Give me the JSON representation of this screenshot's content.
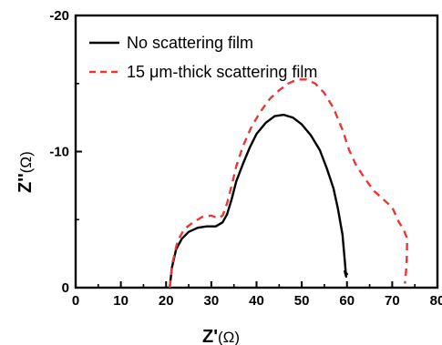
{
  "chart_data": {
    "type": "line",
    "xlabel": "Z'",
    "xlabel_unit": "(Ω)",
    "ylabel": "Z''",
    "ylabel_unit": "(Ω)",
    "xlim": [
      0,
      80
    ],
    "ylim": [
      0,
      -20
    ],
    "x_ticks": [
      "0",
      "10",
      "20",
      "30",
      "40",
      "50",
      "60",
      "70",
      "80"
    ],
    "y_ticks": [
      "0",
      "-10",
      "-20"
    ],
    "y_tick_values": [
      0,
      -10,
      -20
    ],
    "grid": false,
    "legend_position": "top-left",
    "series": [
      {
        "name": "No scattering film",
        "color": "#000000",
        "style": "solid",
        "points": [
          [
            20.8,
            0.0
          ],
          [
            21.3,
            -1.5
          ],
          [
            22.2,
            -2.8
          ],
          [
            23.5,
            -3.6
          ],
          [
            25.0,
            -4.1
          ],
          [
            27.0,
            -4.4
          ],
          [
            29.0,
            -4.5
          ],
          [
            31.0,
            -4.5
          ],
          [
            32.5,
            -4.8
          ],
          [
            33.5,
            -5.4
          ],
          [
            34.5,
            -6.5
          ],
          [
            35.5,
            -7.8
          ],
          [
            37.0,
            -9.1
          ],
          [
            38.5,
            -10.3
          ],
          [
            40.0,
            -11.3
          ],
          [
            42.0,
            -12.1
          ],
          [
            44.0,
            -12.6
          ],
          [
            46.0,
            -12.7
          ],
          [
            48.0,
            -12.5
          ],
          [
            50.0,
            -12.0
          ],
          [
            52.0,
            -11.2
          ],
          [
            54.0,
            -10.1
          ],
          [
            55.5,
            -8.8
          ],
          [
            57.0,
            -7.3
          ],
          [
            58.0,
            -5.8
          ],
          [
            59.0,
            -3.9
          ],
          [
            59.5,
            -2.0
          ],
          [
            59.8,
            -0.8
          ],
          [
            59.5,
            -1.2
          ],
          [
            60.0,
            -1.0
          ]
        ]
      },
      {
        "name": "15 μm-thick scattering film",
        "color": "#e53935",
        "style": "dashed",
        "points": [
          [
            20.8,
            0.0
          ],
          [
            21.4,
            -1.8
          ],
          [
            22.5,
            -3.4
          ],
          [
            24.0,
            -4.3
          ],
          [
            26.0,
            -4.8
          ],
          [
            28.0,
            -5.2
          ],
          [
            30.0,
            -5.3
          ],
          [
            31.5,
            -5.1
          ],
          [
            32.5,
            -5.3
          ],
          [
            33.5,
            -6.2
          ],
          [
            34.5,
            -7.5
          ],
          [
            35.5,
            -8.9
          ],
          [
            37.0,
            -10.4
          ],
          [
            39.0,
            -11.9
          ],
          [
            41.0,
            -13.0
          ],
          [
            43.0,
            -13.9
          ],
          [
            45.0,
            -14.5
          ],
          [
            47.0,
            -15.0
          ],
          [
            49.0,
            -15.3
          ],
          [
            51.0,
            -15.3
          ],
          [
            53.0,
            -15.0
          ],
          [
            55.0,
            -14.3
          ],
          [
            57.0,
            -13.2
          ],
          [
            59.0,
            -11.6
          ],
          [
            60.5,
            -10.1
          ],
          [
            62.0,
            -9.0
          ],
          [
            64.0,
            -8.0
          ],
          [
            66.0,
            -7.1
          ],
          [
            68.0,
            -6.5
          ],
          [
            70.0,
            -5.9
          ],
          [
            71.5,
            -4.8
          ],
          [
            72.5,
            -4.3
          ],
          [
            73.3,
            -3.6
          ],
          [
            73.2,
            -2.0
          ],
          [
            73.0,
            -1.0
          ],
          [
            72.8,
            -0.3
          ]
        ]
      }
    ]
  }
}
